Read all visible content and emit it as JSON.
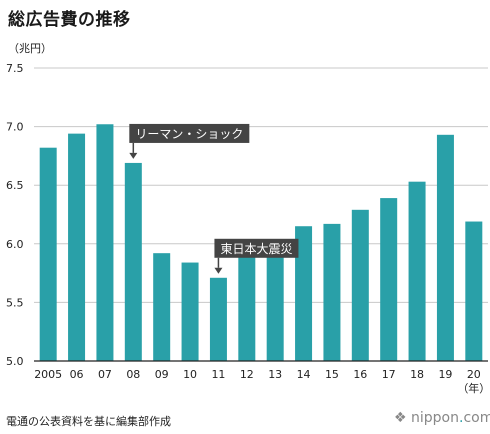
{
  "chart_data": {
    "type": "bar",
    "title": "総広告費の推移",
    "ylabel": "（兆円）",
    "xlabel": "（年）",
    "categories": [
      "2005",
      "06",
      "07",
      "08",
      "09",
      "10",
      "11",
      "12",
      "13",
      "14",
      "15",
      "16",
      "17",
      "18",
      "19",
      "20"
    ],
    "values": [
      6.82,
      6.94,
      7.02,
      6.69,
      5.92,
      5.84,
      5.71,
      5.89,
      5.98,
      6.15,
      6.17,
      6.29,
      6.39,
      6.53,
      6.93,
      6.19
    ],
    "ylim": [
      5.0,
      7.5
    ],
    "yticks": [
      5.0,
      5.5,
      6.0,
      6.5,
      7.0,
      7.5
    ],
    "ytick_labels": [
      "5.0",
      "5.5",
      "6.0",
      "6.5",
      "7.0",
      "7.5"
    ],
    "grid": true,
    "bar_color": "#29a0a8",
    "annotations": [
      {
        "text": "リーマン・ショック",
        "category": "08"
      },
      {
        "text": "東日本大震災",
        "category": "11"
      }
    ],
    "source": "電通の公表資料を基に編集部作成"
  },
  "brand": {
    "name": "nippon",
    "dot": ".",
    "tld": "com",
    "prefix": "❖"
  }
}
